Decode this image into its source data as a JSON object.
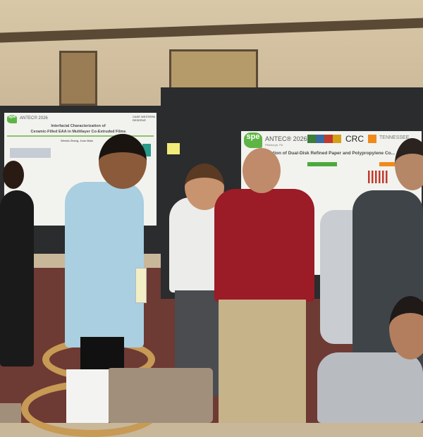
{
  "left_poster": {
    "logo_text": "spe",
    "conference": "ANTEC® 2026",
    "title_line1": "Interfacial Characterization of",
    "title_line2": "Ceramic-Filled EAA in Multilayer Co-Extruded Films",
    "authors": "Wenda Zhang, Joao Maia",
    "institution": "CASE WESTERN RESERVE"
  },
  "right_poster": {
    "logo_text": "spe",
    "conference": "ANTEC® 2026",
    "location": "Pittsburgh, PA",
    "sponsor": "CRC",
    "title": "...ation of Dual-Disk Refined Paper and Polypropylene Co...",
    "institution": "TENNESSEE"
  },
  "colors": {
    "board": "#2a2c2e",
    "carpet": "#6e3a34",
    "accent_green": "#5fb446",
    "shirt_red": "#9b1b26",
    "shirt_blue": "#a9cfe0"
  }
}
